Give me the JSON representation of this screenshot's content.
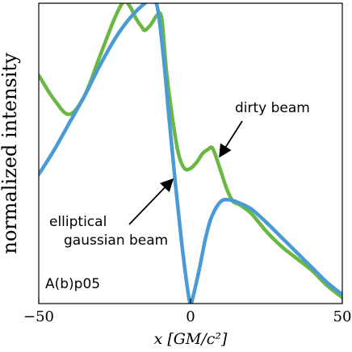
{
  "chart_data": {
    "type": "line",
    "xlabel": "x [GM/c²]",
    "ylabel": "normalized intensity",
    "xlim": [
      -50,
      50
    ],
    "ylim": [
      0,
      1
    ],
    "x_ticks": [
      "−50",
      "0",
      "50"
    ],
    "grid": false,
    "panel_label": "A(b)p05",
    "series": [
      {
        "key": "gaussian",
        "name": "elliptical gaussian beam",
        "color": "#4a9ad6",
        "x": [
          -50,
          -45,
          -40,
          -35,
          -30,
          -25,
          -20,
          -15,
          -13,
          -11,
          -9,
          -7,
          -5,
          -3,
          -1,
          0,
          1,
          3,
          5,
          7,
          10,
          13,
          16,
          20,
          25,
          30,
          35,
          40,
          45,
          50
        ],
        "y": [
          0.43,
          0.51,
          0.6,
          0.69,
          0.79,
          0.88,
          0.95,
          1.0,
          1.005,
          0.99,
          0.83,
          0.61,
          0.4,
          0.21,
          0.05,
          0.0,
          0.03,
          0.12,
          0.22,
          0.29,
          0.34,
          0.345,
          0.335,
          0.315,
          0.27,
          0.22,
          0.17,
          0.12,
          0.07,
          0.03
        ]
      },
      {
        "key": "dirty",
        "name": "dirty beam",
        "color": "#6ab843",
        "x": [
          -50,
          -45,
          -40,
          -35,
          -30,
          -25,
          -22,
          -20,
          -18,
          -16,
          -15,
          -13,
          -11,
          -9.5,
          -8,
          -6,
          -4,
          -2,
          0,
          2,
          4,
          6,
          7,
          8,
          10,
          12,
          14,
          16,
          20,
          25,
          30,
          35,
          40,
          45,
          50
        ],
        "y": [
          0.76,
          0.68,
          0.63,
          0.69,
          0.82,
          0.95,
          1.005,
          0.99,
          0.95,
          0.92,
          0.91,
          0.93,
          0.96,
          0.95,
          0.78,
          0.62,
          0.5,
          0.45,
          0.45,
          0.47,
          0.5,
          0.515,
          0.52,
          0.5,
          0.44,
          0.38,
          0.34,
          0.33,
          0.3,
          0.24,
          0.19,
          0.15,
          0.11,
          0.06,
          0.02
        ]
      }
    ],
    "annotations": [
      {
        "key": "dirty_label",
        "text": "dirty beam",
        "points_to": "dirty"
      },
      {
        "key": "gauss_label_1",
        "text": "elliptical",
        "points_to": "gaussian"
      },
      {
        "key": "gauss_label_2",
        "text": "gaussian beam",
        "points_to": "gaussian"
      }
    ]
  }
}
